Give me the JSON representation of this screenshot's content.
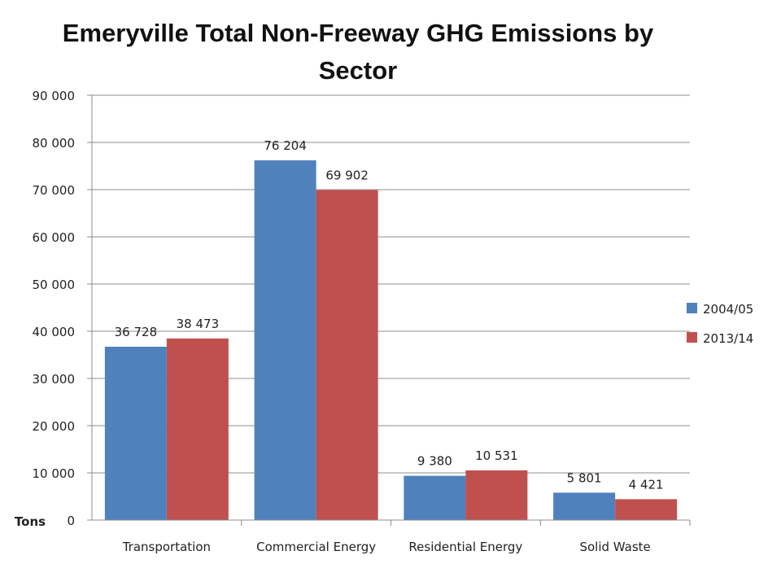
{
  "chart_data": {
    "type": "bar",
    "title": "Emeryville Total Non-Freeway GHG Emissions by Sector",
    "ylabel": "Tons",
    "xlabel": "",
    "categories": [
      "Transportation",
      "Commercial Energy",
      "Residential Energy",
      "Solid Waste"
    ],
    "series": [
      {
        "name": "2004/05",
        "color": "#4F81BD",
        "values": [
          36728,
          76204,
          9380,
          5801
        ],
        "labels": [
          "36 728",
          "76 204",
          "9 380",
          "5 801"
        ]
      },
      {
        "name": "2013/14",
        "color": "#C0504D",
        "values": [
          38473,
          69902,
          10531,
          4421
        ],
        "labels": [
          "38 473",
          "69 902",
          "10 531",
          "4 421"
        ]
      }
    ],
    "ylim": [
      0,
      90000
    ],
    "yticks": [
      0,
      10000,
      20000,
      30000,
      40000,
      50000,
      60000,
      70000,
      80000,
      90000
    ],
    "ytick_labels": [
      "0",
      "10 000",
      "20 000",
      "30 000",
      "40 000",
      "50 000",
      "60 000",
      "70 000",
      "80 000",
      "90 000"
    ],
    "grid": true,
    "legend_position": "right"
  }
}
